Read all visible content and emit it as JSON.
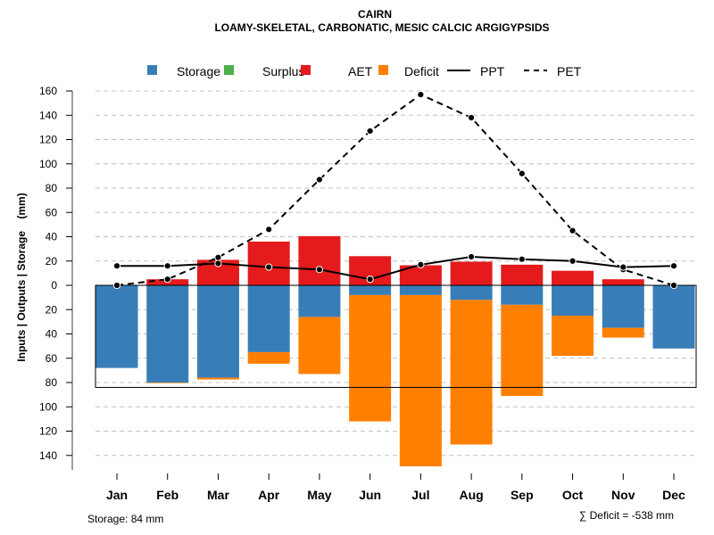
{
  "chart_data": {
    "type": "bar",
    "title": "CAIRN",
    "subtitle": "LOAMY-SKELETAL, CARBONATIC, MESIC CALCIC ARGIGYPSIDS",
    "xlabel": "",
    "ylabel": "Inputs | Outputs | Storage    (mm)",
    "ylim": [
      -150,
      160
    ],
    "y_ticks": [
      160,
      140,
      120,
      100,
      80,
      60,
      40,
      20,
      0,
      -20,
      -40,
      -60,
      -80,
      -100,
      -120,
      -140
    ],
    "y_tick_labels": [
      "160",
      "140",
      "120",
      "100",
      "80",
      "60",
      "40",
      "20",
      "0",
      "20",
      "40",
      "60",
      "80",
      "100",
      "120",
      "140"
    ],
    "grid": true,
    "legend_position": "top",
    "categories": [
      "Jan",
      "Feb",
      "Mar",
      "Apr",
      "May",
      "Jun",
      "Jul",
      "Aug",
      "Sep",
      "Oct",
      "Nov",
      "Dec"
    ],
    "legend": [
      {
        "name": "Storage",
        "kind": "box",
        "color": "#377EB8"
      },
      {
        "name": "Surplus",
        "kind": "box",
        "color": "#4DAF4A"
      },
      {
        "name": "AET",
        "kind": "box",
        "color": "#E41A1C"
      },
      {
        "name": "Deficit",
        "kind": "box",
        "color": "#FF7F00"
      },
      {
        "name": "PPT",
        "kind": "solid-line",
        "color": "#000000"
      },
      {
        "name": "PET",
        "kind": "dashed-line",
        "color": "#000000"
      }
    ],
    "series": [
      {
        "name": "AET",
        "color": "#E41A1C",
        "direction": "up",
        "values": [
          0,
          5,
          21,
          36,
          40.5,
          24,
          16.5,
          19.5,
          17,
          12,
          5,
          0
        ]
      },
      {
        "name": "Surplus",
        "color": "#4DAF4A",
        "direction": "up",
        "values": [
          0,
          0,
          0,
          0,
          0,
          0,
          0,
          0,
          0,
          0,
          0,
          0
        ]
      },
      {
        "name": "Storage",
        "color": "#377EB8",
        "direction": "down",
        "values": [
          68,
          80,
          76,
          55,
          26,
          8,
          8,
          12,
          16,
          25,
          35,
          52
        ]
      },
      {
        "name": "Deficit",
        "color": "#FF7F00",
        "direction": "down",
        "values": [
          0,
          0.5,
          1.5,
          9.5,
          47,
          104,
          141,
          119,
          75,
          33,
          8,
          0
        ]
      },
      {
        "name": "PPT",
        "color": "#000000",
        "style": "solid",
        "values": [
          16,
          16,
          18,
          15,
          13,
          5,
          17,
          23.5,
          21.5,
          20,
          15,
          16
        ]
      },
      {
        "name": "PET",
        "color": "#000000",
        "style": "dashed",
        "values": [
          0,
          5,
          23,
          46,
          87,
          127,
          157,
          138,
          92,
          45,
          13,
          0
        ]
      }
    ],
    "storage_capacity": 84,
    "annotations": {
      "storage": "Storage: 84 mm",
      "deficit_total": "∑ Deficit = -538 mm"
    }
  }
}
